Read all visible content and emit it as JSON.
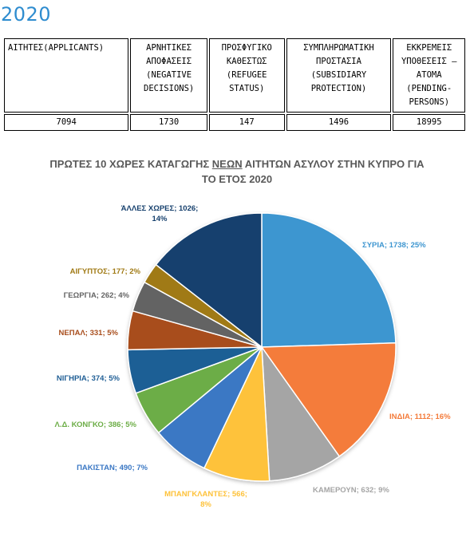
{
  "heading": "2020",
  "table": {
    "headers": [
      "ΑΙΤΗΤΕΣ(APPLICANTS)",
      "ΑΡΝΗΤΙΚΕΣ ΑΠΟΦΑΣΕΙΣ (NEGATIVE DECISIONS)",
      "ΠΡΟΣΦΥΓΙΚΟ ΚΑΘΕΣΤΩΣ (REFUGEE STATUS)",
      "ΣΥΜΠΛΗΡΩΜΑΤΙΚΗ ΠΡΟΣΤΑΣΙΑ (SUBSIDIARY PROTECTION)",
      "ΕΚΚΡΕΜΕΙΣ ΥΠΟΘΕΣΕΙΣ – ΑΤΟΜΑ (PENDING- PERSONS)"
    ],
    "values": [
      "7094",
      "1730",
      "147",
      "1496",
      "18995"
    ]
  },
  "chart_data": {
    "type": "pie",
    "title_parts": [
      "ΠΡΩΤΕΣ 10 ΧΩΡΕΣ ΚΑΤΑΓΩΓΗΣ ",
      "ΝΕΩΝ",
      " ΑΙΤΗΤΩΝ ΑΣΥΛΟΥ ΣΤΗΝ ΚΥΠΡΟ ΓΙΑ",
      "ΤΟ ΕΤΟΣ 2020"
    ],
    "slices": [
      {
        "label": "ΣΥΡΙΑ",
        "value": 1738,
        "percent": "25%",
        "color": "#3e96d0"
      },
      {
        "label": "ΙΝΔΙΑ",
        "value": 1112,
        "percent": "16%",
        "color": "#f47b3a"
      },
      {
        "label": "ΚΑΜΕΡΟΥΝ",
        "value": 632,
        "percent": "9%",
        "color": "#a5a5a5"
      },
      {
        "label": "ΜΠΑΝΓΚΛΑΝΤΕΣ",
        "value": 566,
        "percent": "8%",
        "color": "#fec23a"
      },
      {
        "label": "ΠΑΚΙΣΤΑΝ",
        "value": 490,
        "percent": "7%",
        "color": "#3b78c4"
      },
      {
        "label": "Λ.Δ. ΚΟΝΓΚΟ",
        "value": 386,
        "percent": "5%",
        "color": "#6cad46"
      },
      {
        "label": "ΝΙΓΗΡΙΑ",
        "value": 374,
        "percent": "5%",
        "color": "#1f5e95"
      },
      {
        "label": "ΝΕΠΑΛ",
        "value": 331,
        "percent": "5%",
        "color": "#a84d1c"
      },
      {
        "label": "ΓΕΩΡΓΙΑ",
        "value": 262,
        "percent": "4%",
        "color": "#636363"
      },
      {
        "label": "ΑΙΓΥΠΤΟΣ",
        "value": 177,
        "percent": "2%",
        "color": "#a07a14"
      },
      {
        "label": "ΆΛΛΕΣ ΧΩΡΕΣ",
        "value": 1026,
        "percent": "14%",
        "color": "#17416e"
      }
    ]
  }
}
